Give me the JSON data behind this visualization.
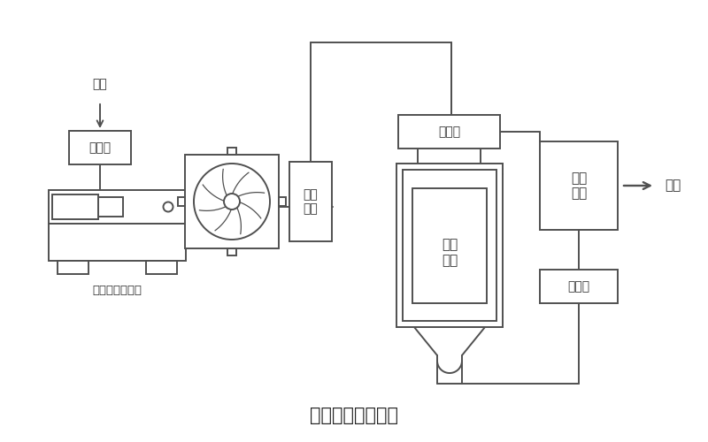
{
  "title": "氧气机原理示例图",
  "labels": {
    "air": "空气",
    "filter": "过滤器",
    "compressor": "无油空气压缩机",
    "cooling_system": "冷却\n系统",
    "separator": "分离阀",
    "molecular_sieve": "分子\n筛塔",
    "humidifier": "湿化\n水箱",
    "control_valve": "控制阀",
    "oxygen": "氧气"
  },
  "line_color": "#505050",
  "lw": 1.4,
  "bg": "white"
}
